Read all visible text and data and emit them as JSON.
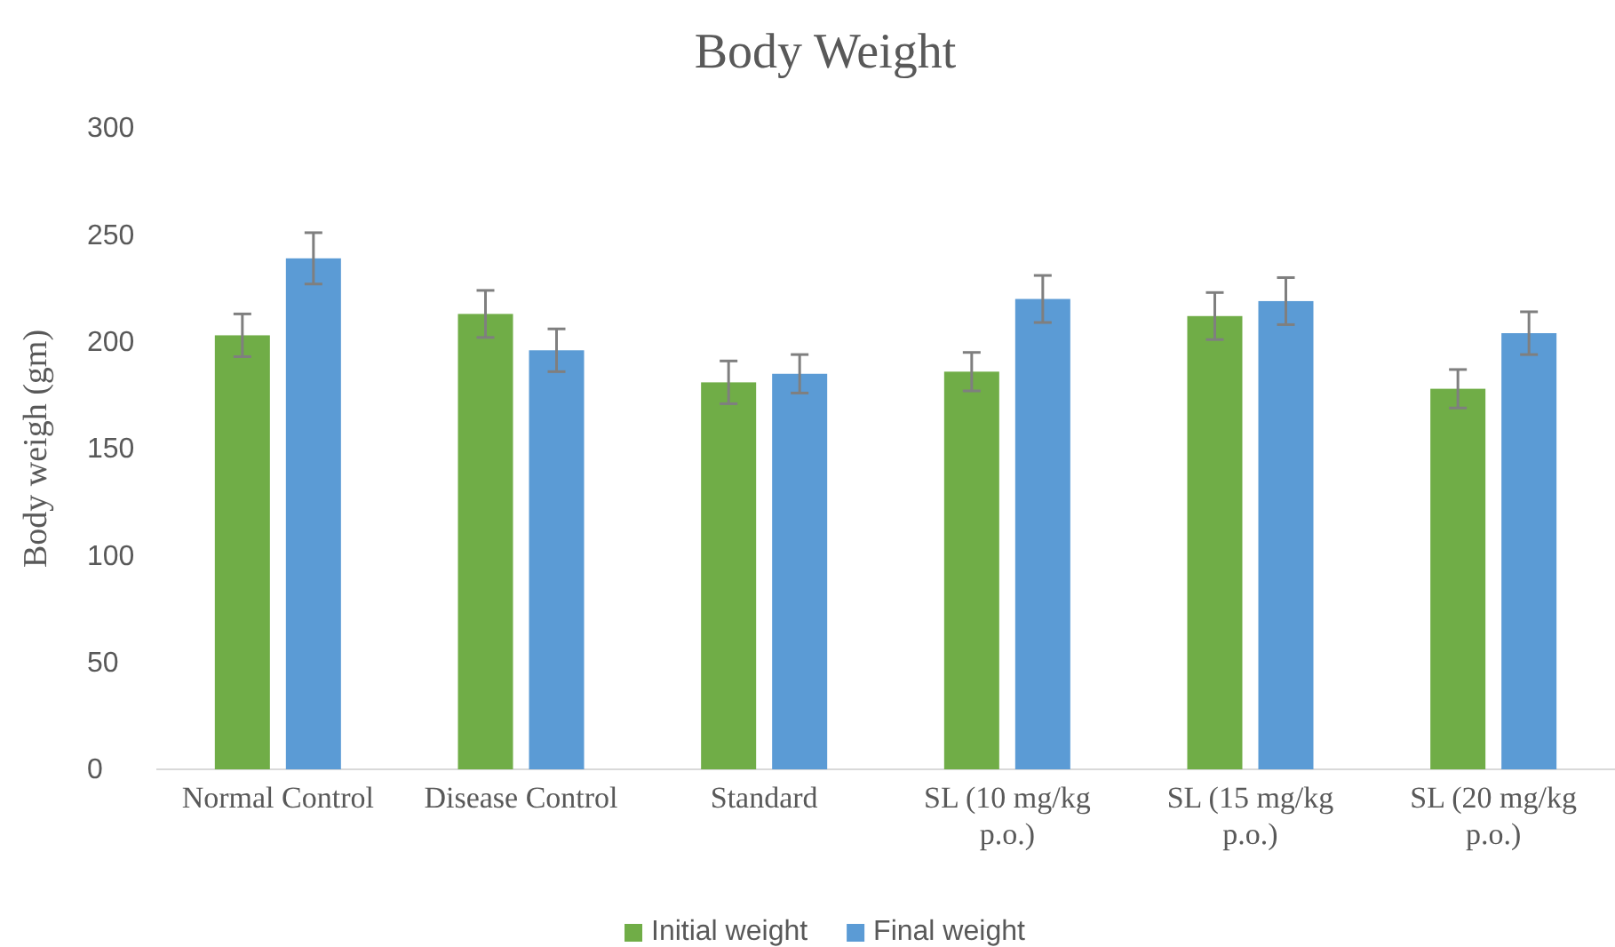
{
  "chart_data": {
    "type": "bar",
    "title": "Body Weight",
    "ylabel": "Body weigh (gm)",
    "categories": [
      "Normal Control",
      "Disease Control",
      "Standard",
      "SL (10 mg/kg p.o.)",
      "SL (15 mg/kg p.o.)",
      "SL (20 mg/kg p.o.)"
    ],
    "series": [
      {
        "name": "Initial weight",
        "color": "#70ad47",
        "values": [
          203,
          213,
          181,
          186,
          212,
          178
        ],
        "errors": [
          10,
          11,
          10,
          9,
          11,
          9
        ]
      },
      {
        "name": "Final weight",
        "color": "#5b9bd5",
        "values": [
          239,
          196,
          185,
          220,
          219,
          204
        ],
        "errors": [
          12,
          10,
          9,
          11,
          11,
          10
        ]
      }
    ],
    "ylim": [
      0,
      300
    ],
    "yticks": [
      0,
      50,
      100,
      150,
      200,
      250,
      300
    ],
    "grid": false,
    "legend": "bottom"
  }
}
